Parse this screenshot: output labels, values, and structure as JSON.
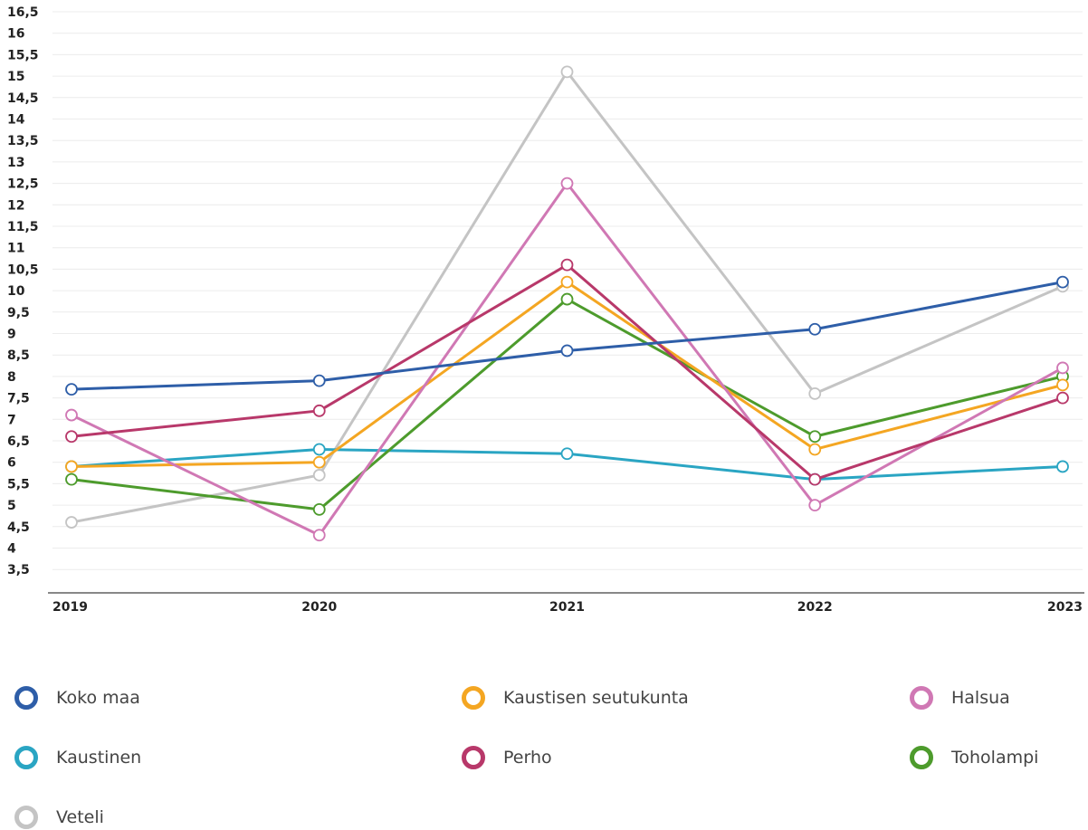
{
  "chart_data": {
    "type": "line",
    "title": "",
    "xlabel": "",
    "ylabel": "",
    "x": [
      "2019",
      "2020",
      "2021",
      "2022",
      "2023"
    ],
    "ylim": [
      3,
      16.5
    ],
    "yticks": [
      "16,5",
      "16",
      "15,5",
      "15",
      "14,5",
      "14",
      "13,5",
      "13",
      "12,5",
      "12",
      "11,5",
      "11",
      "10,5",
      "10",
      "9,5",
      "9",
      "8,5",
      "8",
      "7,5",
      "7",
      "6,5",
      "6",
      "5,5",
      "5",
      "4,5",
      "4",
      "3,5"
    ],
    "grid": true,
    "legend_position": "bottom",
    "series": [
      {
        "name": "Veteli",
        "color": "#c4c4c4",
        "values": [
          4.6,
          5.7,
          15.1,
          7.6,
          10.1
        ]
      },
      {
        "name": "Kaustinen",
        "color": "#2aa5c3",
        "values": [
          5.9,
          6.3,
          6.2,
          5.6,
          5.9
        ]
      },
      {
        "name": "Toholampi",
        "color": "#4d9b2c",
        "values": [
          5.6,
          4.9,
          9.8,
          6.6,
          8.0
        ]
      },
      {
        "name": "Kaustisen seutukunta",
        "color": "#f4a622",
        "values": [
          5.9,
          6.0,
          10.2,
          6.3,
          7.8
        ]
      },
      {
        "name": "Halsua",
        "color": "#d078b4",
        "values": [
          7.1,
          4.3,
          12.5,
          5.0,
          8.2
        ]
      },
      {
        "name": "Perho",
        "color": "#b8386a",
        "values": [
          6.6,
          7.2,
          10.6,
          5.6,
          7.5
        ]
      },
      {
        "name": "Koko maa",
        "color": "#2e5ea8",
        "values": [
          7.7,
          7.9,
          8.6,
          9.1,
          10.2
        ]
      }
    ]
  },
  "legend": [
    {
      "label": "Koko maa",
      "color": "#2e5ea8"
    },
    {
      "label": "Kaustisen seutukunta",
      "color": "#f4a622"
    },
    {
      "label": "Halsua",
      "color": "#d078b4"
    },
    {
      "label": "Kaustinen",
      "color": "#2aa5c3"
    },
    {
      "label": "Perho",
      "color": "#b8386a"
    },
    {
      "label": "Toholampi",
      "color": "#4d9b2c"
    },
    {
      "label": "Veteli",
      "color": "#c4c4c4"
    }
  ]
}
